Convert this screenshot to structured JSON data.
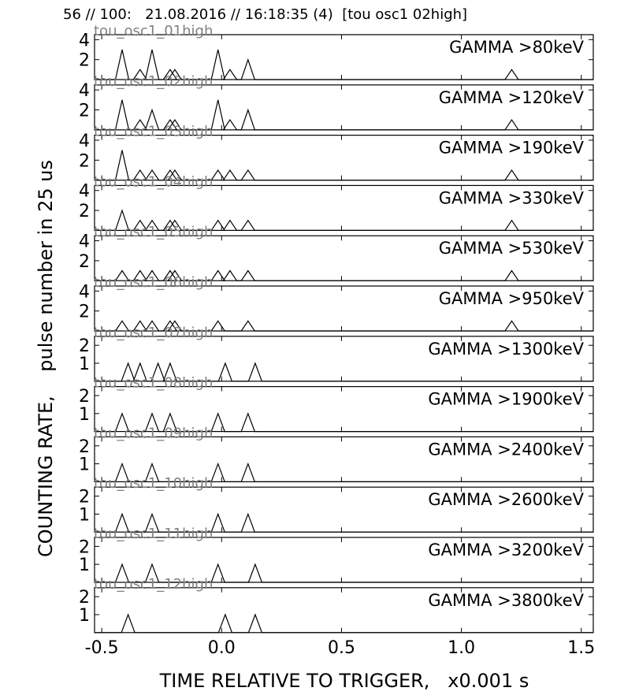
{
  "header": {
    "title": "56 // 100:   21.08.2016 // 16:18:35 (4)  [tou osc1 02high]"
  },
  "chart_data": {
    "type": "line",
    "xlabel": "TIME RELATIVE TO TRIGGER,   x0.001 s",
    "ylabel": "COUNTING RATE,    pulse number in 25 us",
    "xlim": [
      -0.53,
      1.55
    ],
    "x_ticks": [
      "-0.5",
      "0.0",
      "0.5",
      "1.0",
      "1.5"
    ],
    "x_tick_values": [
      -0.5,
      0.0,
      0.5,
      1.0,
      1.5
    ],
    "panels": [
      {
        "label": "GAMMA >80keV",
        "channel": "tou_osc1_01high",
        "ylim": [
          0,
          4.5
        ],
        "y_ticks": [
          "2",
          "4"
        ],
        "y_tick_values": [
          2,
          4
        ],
        "pulses": [
          [
            -0.415,
            3
          ],
          [
            -0.34,
            1
          ],
          [
            -0.29,
            3
          ],
          [
            -0.215,
            1
          ],
          [
            -0.195,
            1
          ],
          [
            -0.015,
            3
          ],
          [
            0.035,
            1
          ],
          [
            0.11,
            2
          ],
          [
            1.21,
            1
          ]
        ]
      },
      {
        "label": "GAMMA >120keV",
        "channel": "tou_osc1_02high",
        "ylim": [
          0,
          4.5
        ],
        "y_ticks": [
          "2",
          "4"
        ],
        "y_tick_values": [
          2,
          4
        ],
        "pulses": [
          [
            -0.415,
            3
          ],
          [
            -0.34,
            1
          ],
          [
            -0.29,
            2
          ],
          [
            -0.215,
            1
          ],
          [
            -0.195,
            1
          ],
          [
            -0.015,
            3
          ],
          [
            0.035,
            1
          ],
          [
            0.11,
            2
          ],
          [
            1.21,
            1
          ]
        ]
      },
      {
        "label": "GAMMA >190keV",
        "channel": "tou_osc1_03high",
        "ylim": [
          0,
          4.5
        ],
        "y_ticks": [
          "2",
          "4"
        ],
        "y_tick_values": [
          2,
          4
        ],
        "pulses": [
          [
            -0.415,
            3
          ],
          [
            -0.34,
            1
          ],
          [
            -0.29,
            1
          ],
          [
            -0.215,
            1
          ],
          [
            -0.195,
            1
          ],
          [
            -0.015,
            1
          ],
          [
            0.035,
            1
          ],
          [
            0.11,
            1
          ],
          [
            1.21,
            1
          ]
        ]
      },
      {
        "label": "GAMMA >330keV",
        "channel": "tou_osc1_04high",
        "ylim": [
          0,
          4.5
        ],
        "y_ticks": [
          "2",
          "4"
        ],
        "y_tick_values": [
          2,
          4
        ],
        "pulses": [
          [
            -0.415,
            2
          ],
          [
            -0.34,
            1
          ],
          [
            -0.29,
            1
          ],
          [
            -0.215,
            1
          ],
          [
            -0.195,
            1
          ],
          [
            -0.015,
            1
          ],
          [
            0.035,
            1
          ],
          [
            0.11,
            1
          ],
          [
            1.21,
            1
          ]
        ]
      },
      {
        "label": "GAMMA >530keV",
        "channel": "tou_osc1_05high",
        "ylim": [
          0,
          4.5
        ],
        "y_ticks": [
          "2",
          "4"
        ],
        "y_tick_values": [
          2,
          4
        ],
        "pulses": [
          [
            -0.415,
            1
          ],
          [
            -0.34,
            1
          ],
          [
            -0.29,
            1
          ],
          [
            -0.215,
            1
          ],
          [
            -0.195,
            1
          ],
          [
            -0.015,
            1
          ],
          [
            0.035,
            1
          ],
          [
            0.11,
            1
          ],
          [
            1.21,
            1
          ]
        ]
      },
      {
        "label": "GAMMA >950keV",
        "channel": "tou_osc1_06high",
        "ylim": [
          0,
          4.5
        ],
        "y_ticks": [
          "2",
          "4"
        ],
        "y_tick_values": [
          2,
          4
        ],
        "pulses": [
          [
            -0.415,
            1
          ],
          [
            -0.34,
            1
          ],
          [
            -0.29,
            1
          ],
          [
            -0.215,
            1
          ],
          [
            -0.195,
            1
          ],
          [
            -0.015,
            1
          ],
          [
            0.11,
            1
          ],
          [
            1.21,
            1
          ]
        ]
      },
      {
        "label": "GAMMA >1300keV",
        "channel": "tou_osc1_07high",
        "ylim": [
          0,
          2.5
        ],
        "y_ticks": [
          "1",
          "2"
        ],
        "y_tick_values": [
          1,
          2
        ],
        "pulses": [
          [
            -0.39,
            1
          ],
          [
            -0.34,
            1
          ],
          [
            -0.265,
            1
          ],
          [
            -0.215,
            1
          ],
          [
            0.015,
            1
          ],
          [
            0.14,
            1
          ]
        ]
      },
      {
        "label": "GAMMA >1900keV",
        "channel": "tou_osc1_08high",
        "ylim": [
          0,
          2.5
        ],
        "y_ticks": [
          "1",
          "2"
        ],
        "y_tick_values": [
          1,
          2
        ],
        "pulses": [
          [
            -0.415,
            1
          ],
          [
            -0.29,
            1
          ],
          [
            -0.215,
            1
          ],
          [
            -0.015,
            1
          ],
          [
            0.11,
            1
          ]
        ]
      },
      {
        "label": "GAMMA >2400keV",
        "channel": "tou_osc1_09high",
        "ylim": [
          0,
          2.5
        ],
        "y_ticks": [
          "1",
          "2"
        ],
        "y_tick_values": [
          1,
          2
        ],
        "pulses": [
          [
            -0.415,
            1
          ],
          [
            -0.29,
            1
          ],
          [
            -0.015,
            1
          ],
          [
            0.11,
            1
          ]
        ]
      },
      {
        "label": "GAMMA >2600keV",
        "channel": "tou_osc1_10high",
        "ylim": [
          0,
          2.5
        ],
        "y_ticks": [
          "1",
          "2"
        ],
        "y_tick_values": [
          1,
          2
        ],
        "pulses": [
          [
            -0.415,
            1
          ],
          [
            -0.29,
            1
          ],
          [
            -0.015,
            1
          ],
          [
            0.11,
            1
          ]
        ]
      },
      {
        "label": "GAMMA >3200keV",
        "channel": "tou_osc1_11high",
        "ylim": [
          0,
          2.5
        ],
        "y_ticks": [
          "1",
          "2"
        ],
        "y_tick_values": [
          1,
          2
        ],
        "pulses": [
          [
            -0.415,
            1
          ],
          [
            -0.29,
            1
          ],
          [
            -0.015,
            1
          ],
          [
            0.14,
            1
          ]
        ]
      },
      {
        "label": "GAMMA >3800keV",
        "channel": "tou_osc1_12high",
        "ylim": [
          0,
          2.5
        ],
        "y_ticks": [
          "1",
          "2"
        ],
        "y_tick_values": [
          1,
          2
        ],
        "pulses": [
          [
            -0.39,
            1
          ],
          [
            0.015,
            1
          ],
          [
            0.14,
            1
          ]
        ]
      }
    ]
  }
}
